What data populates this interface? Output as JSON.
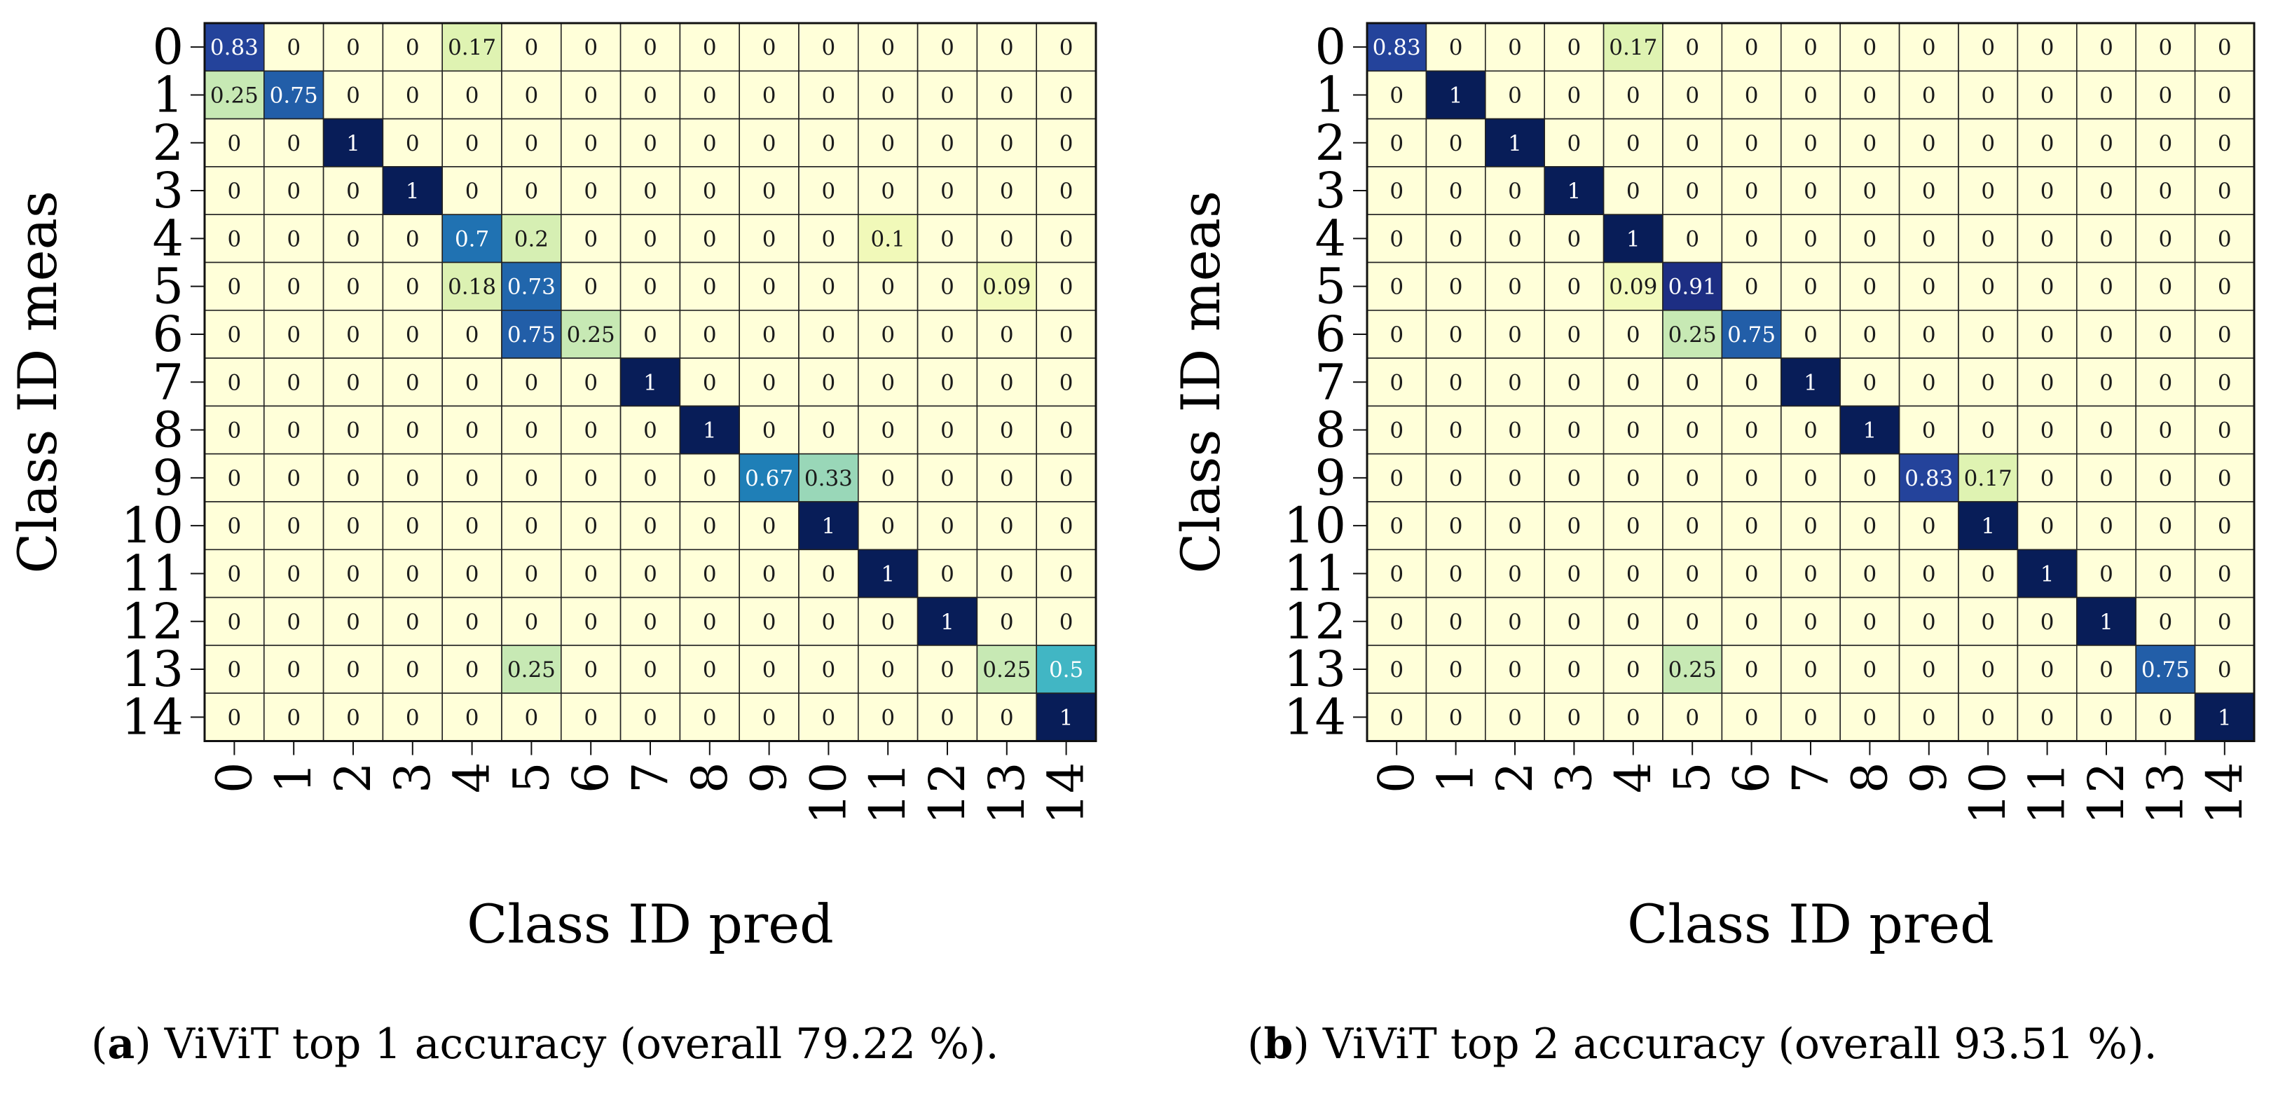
{
  "chart_data": [
    {
      "type": "heatmap",
      "panel": "a",
      "caption_letter": "a",
      "caption_text": "ViViT top 1 accuracy (overall 79.22 %).",
      "xlabel": "Class ID pred",
      "ylabel": "Class ID meas",
      "x_categories": [
        "0",
        "1",
        "2",
        "3",
        "4",
        "5",
        "6",
        "7",
        "8",
        "9",
        "10",
        "11",
        "12",
        "13",
        "14"
      ],
      "y_categories": [
        "0",
        "1",
        "2",
        "3",
        "4",
        "5",
        "6",
        "7",
        "8",
        "9",
        "10",
        "11",
        "12",
        "13",
        "14"
      ],
      "colormap": "YlGnBu",
      "value_range": [
        0,
        1
      ],
      "matrix": [
        [
          0.83,
          0,
          0,
          0,
          0.17,
          0,
          0,
          0,
          0,
          0,
          0,
          0,
          0,
          0,
          0
        ],
        [
          0.25,
          0.75,
          0,
          0,
          0,
          0,
          0,
          0,
          0,
          0,
          0,
          0,
          0,
          0,
          0
        ],
        [
          0,
          0,
          1,
          0,
          0,
          0,
          0,
          0,
          0,
          0,
          0,
          0,
          0,
          0,
          0
        ],
        [
          0,
          0,
          0,
          1,
          0,
          0,
          0,
          0,
          0,
          0,
          0,
          0,
          0,
          0,
          0
        ],
        [
          0,
          0,
          0,
          0,
          0.7,
          0.2,
          0,
          0,
          0,
          0,
          0,
          0.1,
          0,
          0,
          0
        ],
        [
          0,
          0,
          0,
          0,
          0.18,
          0.73,
          0,
          0,
          0,
          0,
          0,
          0,
          0,
          0.09,
          0
        ],
        [
          0,
          0,
          0,
          0,
          0,
          0.75,
          0.25,
          0,
          0,
          0,
          0,
          0,
          0,
          0,
          0
        ],
        [
          0,
          0,
          0,
          0,
          0,
          0,
          0,
          1,
          0,
          0,
          0,
          0,
          0,
          0,
          0
        ],
        [
          0,
          0,
          0,
          0,
          0,
          0,
          0,
          0,
          1,
          0,
          0,
          0,
          0,
          0,
          0
        ],
        [
          0,
          0,
          0,
          0,
          0,
          0,
          0,
          0,
          0,
          0.67,
          0.33,
          0,
          0,
          0,
          0
        ],
        [
          0,
          0,
          0,
          0,
          0,
          0,
          0,
          0,
          0,
          0,
          1,
          0,
          0,
          0,
          0
        ],
        [
          0,
          0,
          0,
          0,
          0,
          0,
          0,
          0,
          0,
          0,
          0,
          1,
          0,
          0,
          0
        ],
        [
          0,
          0,
          0,
          0,
          0,
          0,
          0,
          0,
          0,
          0,
          0,
          0,
          1,
          0,
          0
        ],
        [
          0,
          0,
          0,
          0,
          0,
          0.25,
          0,
          0,
          0,
          0,
          0,
          0,
          0,
          0.25,
          0.5
        ],
        [
          0,
          0,
          0,
          0,
          0,
          0,
          0,
          0,
          0,
          0,
          0,
          0,
          0,
          0,
          1
        ]
      ]
    },
    {
      "type": "heatmap",
      "panel": "b",
      "caption_letter": "b",
      "caption_text": "ViViT top 2 accuracy (overall 93.51 %).",
      "xlabel": "Class ID pred",
      "ylabel": "Class ID meas",
      "x_categories": [
        "0",
        "1",
        "2",
        "3",
        "4",
        "5",
        "6",
        "7",
        "8",
        "9",
        "10",
        "11",
        "12",
        "13",
        "14"
      ],
      "y_categories": [
        "0",
        "1",
        "2",
        "3",
        "4",
        "5",
        "6",
        "7",
        "8",
        "9",
        "10",
        "11",
        "12",
        "13",
        "14"
      ],
      "colormap": "YlGnBu",
      "value_range": [
        0,
        1
      ],
      "matrix": [
        [
          0.83,
          0,
          0,
          0,
          0.17,
          0,
          0,
          0,
          0,
          0,
          0,
          0,
          0,
          0,
          0
        ],
        [
          0,
          1,
          0,
          0,
          0,
          0,
          0,
          0,
          0,
          0,
          0,
          0,
          0,
          0,
          0
        ],
        [
          0,
          0,
          1,
          0,
          0,
          0,
          0,
          0,
          0,
          0,
          0,
          0,
          0,
          0,
          0
        ],
        [
          0,
          0,
          0,
          1,
          0,
          0,
          0,
          0,
          0,
          0,
          0,
          0,
          0,
          0,
          0
        ],
        [
          0,
          0,
          0,
          0,
          1,
          0,
          0,
          0,
          0,
          0,
          0,
          0,
          0,
          0,
          0
        ],
        [
          0,
          0,
          0,
          0,
          0.09,
          0.91,
          0,
          0,
          0,
          0,
          0,
          0,
          0,
          0,
          0
        ],
        [
          0,
          0,
          0,
          0,
          0,
          0.25,
          0.75,
          0,
          0,
          0,
          0,
          0,
          0,
          0,
          0
        ],
        [
          0,
          0,
          0,
          0,
          0,
          0,
          0,
          1,
          0,
          0,
          0,
          0,
          0,
          0,
          0
        ],
        [
          0,
          0,
          0,
          0,
          0,
          0,
          0,
          0,
          1,
          0,
          0,
          0,
          0,
          0,
          0
        ],
        [
          0,
          0,
          0,
          0,
          0,
          0,
          0,
          0,
          0,
          0.83,
          0.17,
          0,
          0,
          0,
          0
        ],
        [
          0,
          0,
          0,
          0,
          0,
          0,
          0,
          0,
          0,
          0,
          1,
          0,
          0,
          0,
          0
        ],
        [
          0,
          0,
          0,
          0,
          0,
          0,
          0,
          0,
          0,
          0,
          0,
          1,
          0,
          0,
          0
        ],
        [
          0,
          0,
          0,
          0,
          0,
          0,
          0,
          0,
          0,
          0,
          0,
          0,
          1,
          0,
          0
        ],
        [
          0,
          0,
          0,
          0,
          0,
          0.25,
          0,
          0,
          0,
          0,
          0,
          0,
          0,
          0.75,
          0
        ],
        [
          0,
          0,
          0,
          0,
          0,
          0,
          0,
          0,
          0,
          0,
          0,
          0,
          0,
          0,
          1
        ]
      ]
    }
  ]
}
